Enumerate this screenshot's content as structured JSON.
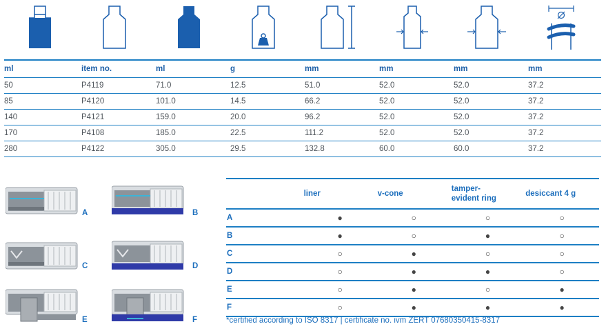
{
  "icons": [
    {
      "name": "bottle-volume-icon"
    },
    {
      "name": "bottle-outline-icon"
    },
    {
      "name": "bottle-brimful-icon"
    },
    {
      "name": "bottle-weight-icon"
    },
    {
      "name": "bottle-height-icon"
    },
    {
      "name": "bottle-diameter-icon"
    },
    {
      "name": "bottle-width-icon"
    },
    {
      "name": "thread-diameter-icon"
    }
  ],
  "spec_table": {
    "headers": [
      "ml",
      "item no.",
      "ml",
      "g",
      "mm",
      "mm",
      "mm",
      "mm"
    ],
    "rows": [
      [
        "50",
        "P4119",
        "71.0",
        "12.5",
        "51.0",
        "52.0",
        "52.0",
        "37.2"
      ],
      [
        "85",
        "P4120",
        "101.0",
        "14.5",
        "66.2",
        "52.0",
        "52.0",
        "37.2"
      ],
      [
        "140",
        "P4121",
        "159.0",
        "20.0",
        "96.2",
        "52.0",
        "52.0",
        "37.2"
      ],
      [
        "170",
        "P4108",
        "185.0",
        "22.5",
        "111.2",
        "52.0",
        "52.0",
        "37.2"
      ],
      [
        "280",
        "P4122",
        "305.0",
        "29.5",
        "132.8",
        "60.0",
        "60.0",
        "37.2"
      ]
    ]
  },
  "caps": [
    "A",
    "B",
    "C",
    "D",
    "E",
    "F"
  ],
  "options_table": {
    "headers": [
      "liner",
      "v-cone",
      "tamper-\nevident ring",
      "desiccant 4 g"
    ],
    "rows": [
      {
        "label": "A",
        "marks": [
          "●",
          "○",
          "○",
          "○"
        ]
      },
      {
        "label": "B",
        "marks": [
          "●",
          "○",
          "●",
          "○"
        ]
      },
      {
        "label": "C",
        "marks": [
          "○",
          "●",
          "○",
          "○"
        ]
      },
      {
        "label": "D",
        "marks": [
          "○",
          "●",
          "●",
          "○"
        ]
      },
      {
        "label": "E",
        "marks": [
          "○",
          "●",
          "○",
          "●"
        ]
      },
      {
        "label": "F",
        "marks": [
          "○",
          "●",
          "●",
          "●"
        ]
      }
    ]
  },
  "footnote": "*certified according to ISO 8317 | certificate no. ivm ZERT 07680350415-8317",
  "colors": {
    "accent": "#1d7fc4",
    "fill": "#1b5fae",
    "text_blue": "#1d6fbd"
  }
}
